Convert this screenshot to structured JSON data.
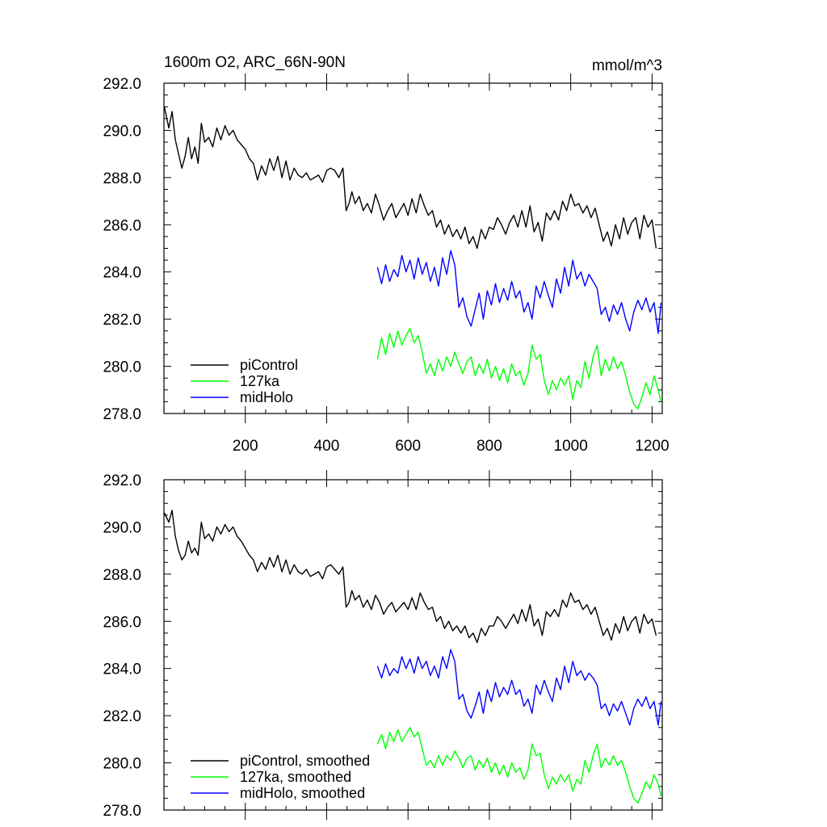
{
  "chart_data": [
    {
      "type": "line",
      "title_left": "1600m O2, ARC_66N-90N",
      "title_right": "mmol/m^3",
      "xlabel": "",
      "ylabel": "",
      "xlim": [
        0,
        1225
      ],
      "ylim": [
        278.0,
        292.0
      ],
      "yticks": [
        "278.0",
        "280.0",
        "282.0",
        "284.0",
        "286.0",
        "288.0",
        "290.0",
        "292.0"
      ],
      "xticks": [
        "200",
        "400",
        "600",
        "800",
        "1000",
        "1200"
      ],
      "legend": "bottom-left",
      "series": [
        {
          "name": "piControl",
          "color": "#000000",
          "x": [
            1,
            12,
            20,
            28,
            36,
            44,
            52,
            60,
            68,
            76,
            84,
            92,
            100,
            110,
            120,
            130,
            140,
            150,
            160,
            170,
            180,
            190,
            200,
            210,
            220,
            230,
            240,
            250,
            260,
            270,
            280,
            290,
            300,
            310,
            320,
            330,
            340,
            350,
            360,
            370,
            380,
            390,
            400,
            410,
            420,
            430,
            440,
            448,
            455,
            462,
            470,
            480,
            490,
            500,
            510,
            520,
            530,
            540,
            550,
            560,
            570,
            580,
            590,
            600,
            610,
            620,
            630,
            640,
            650,
            660,
            670,
            680,
            690,
            700,
            710,
            720,
            730,
            740,
            750,
            760,
            770,
            780,
            790,
            800,
            810,
            820,
            830,
            840,
            850,
            860,
            870,
            880,
            890,
            900,
            910,
            920,
            930,
            940,
            950,
            960,
            970,
            980,
            990,
            1000,
            1010,
            1020,
            1030,
            1040,
            1050,
            1060,
            1070,
            1080,
            1090,
            1100,
            1110,
            1120,
            1130,
            1140,
            1150,
            1160,
            1170,
            1180,
            1190,
            1200,
            1210
          ],
          "y": [
            291.0,
            290.1,
            290.8,
            289.6,
            289.0,
            288.4,
            288.9,
            289.7,
            288.8,
            289.3,
            288.6,
            290.3,
            289.5,
            289.7,
            289.3,
            290.1,
            289.6,
            290.2,
            289.8,
            290.0,
            289.6,
            289.4,
            289.2,
            288.8,
            288.6,
            287.9,
            288.5,
            288.1,
            288.8,
            288.3,
            288.9,
            288.0,
            288.7,
            287.9,
            288.4,
            288.1,
            288.0,
            288.2,
            287.9,
            288.0,
            288.1,
            287.8,
            288.3,
            288.4,
            288.3,
            288.0,
            288.4,
            286.6,
            286.9,
            287.4,
            286.9,
            287.2,
            286.6,
            286.9,
            286.5,
            287.3,
            286.8,
            286.2,
            286.6,
            286.9,
            286.3,
            286.6,
            286.9,
            286.4,
            287.1,
            286.5,
            287.3,
            286.8,
            286.4,
            286.6,
            285.9,
            286.2,
            285.6,
            286.0,
            285.5,
            285.8,
            285.4,
            285.9,
            285.2,
            285.5,
            285.0,
            285.8,
            285.4,
            285.9,
            285.8,
            286.3,
            286.0,
            285.6,
            286.1,
            286.4,
            285.9,
            286.6,
            285.9,
            286.8,
            285.7,
            286.1,
            285.3,
            286.5,
            286.2,
            286.6,
            286.2,
            287.0,
            286.6,
            287.3,
            286.8,
            286.9,
            286.5,
            286.8,
            286.3,
            286.7,
            286.0,
            285.3,
            285.7,
            285.1,
            286.0,
            285.4,
            286.3,
            285.6,
            286.1,
            286.3,
            285.4,
            286.4,
            285.9,
            286.2,
            285.0
          ],
          "smoothed": [
            290.6,
            290.2,
            290.7,
            289.6,
            289.0,
            288.6,
            288.8,
            289.4,
            288.9,
            289.1,
            288.8,
            290.2,
            289.5,
            289.7,
            289.4,
            290.0,
            289.7,
            290.1,
            289.8,
            290.0,
            289.6,
            289.4,
            289.1,
            288.8,
            288.6,
            288.1,
            288.5,
            288.2,
            288.7,
            288.3,
            288.8,
            288.1,
            288.6,
            288.0,
            288.4,
            288.1,
            288.0,
            288.2,
            287.9,
            288.0,
            288.1,
            287.8,
            288.3,
            288.4,
            288.2,
            288.0,
            288.3,
            286.6,
            286.8,
            287.3,
            286.9,
            287.1,
            286.6,
            286.9,
            286.5,
            287.1,
            286.8,
            286.3,
            286.6,
            286.8,
            286.4,
            286.6,
            286.8,
            286.5,
            287.0,
            286.5,
            287.2,
            286.8,
            286.5,
            286.6,
            286.0,
            286.2,
            285.7,
            286.0,
            285.6,
            285.8,
            285.5,
            285.8,
            285.3,
            285.5,
            285.1,
            285.7,
            285.4,
            285.8,
            285.8,
            286.2,
            286.0,
            285.7,
            286.0,
            286.3,
            285.9,
            286.5,
            286.0,
            286.7,
            285.8,
            286.1,
            285.4,
            286.4,
            286.2,
            286.5,
            286.2,
            286.9,
            286.6,
            287.2,
            286.8,
            286.9,
            286.5,
            286.7,
            286.3,
            286.6,
            286.0,
            285.4,
            285.7,
            285.2,
            285.9,
            285.5,
            286.2,
            285.6,
            286.0,
            286.2,
            285.5,
            286.3,
            285.9,
            286.1,
            285.4
          ]
        },
        {
          "name": "127ka",
          "color": "#00ff00",
          "x": [
            525,
            535,
            545,
            555,
            565,
            575,
            585,
            595,
            605,
            615,
            625,
            635,
            645,
            655,
            665,
            675,
            685,
            695,
            705,
            715,
            725,
            735,
            745,
            755,
            765,
            775,
            785,
            795,
            805,
            815,
            825,
            835,
            845,
            855,
            865,
            875,
            885,
            895,
            905,
            915,
            925,
            935,
            945,
            955,
            965,
            975,
            985,
            995,
            1005,
            1015,
            1025,
            1035,
            1045,
            1055,
            1065,
            1075,
            1085,
            1095,
            1105,
            1115,
            1125,
            1135,
            1145,
            1155,
            1165,
            1175,
            1185,
            1195,
            1205,
            1215,
            1222
          ],
          "y": [
            280.3,
            281.2,
            280.5,
            281.4,
            280.8,
            281.5,
            280.9,
            281.3,
            281.6,
            281.0,
            281.3,
            280.6,
            279.7,
            280.1,
            279.6,
            280.3,
            279.8,
            280.4,
            280.0,
            280.6,
            280.1,
            279.7,
            280.2,
            280.4,
            279.6,
            280.1,
            279.7,
            280.3,
            279.5,
            280.0,
            279.4,
            279.9,
            279.3,
            280.1,
            279.6,
            279.8,
            279.2,
            279.7,
            280.9,
            280.3,
            280.5,
            279.4,
            278.8,
            279.4,
            279.0,
            279.5,
            279.2,
            279.6,
            278.6,
            279.4,
            279.1,
            280.2,
            279.5,
            280.4,
            280.9,
            279.6,
            280.3,
            279.8,
            280.4,
            279.9,
            280.2,
            279.6,
            278.9,
            278.4,
            278.2,
            278.7,
            279.3,
            278.8,
            279.6,
            279.0,
            278.5
          ],
          "smoothed": [
            280.8,
            281.2,
            280.6,
            281.3,
            280.9,
            281.4,
            280.9,
            281.2,
            281.5,
            281.1,
            281.3,
            280.6,
            279.9,
            280.1,
            279.8,
            280.3,
            279.9,
            280.3,
            280.1,
            280.5,
            280.2,
            279.8,
            280.2,
            280.3,
            279.7,
            280.1,
            279.8,
            280.2,
            279.6,
            280.0,
            279.5,
            279.9,
            279.4,
            280.0,
            279.6,
            279.8,
            279.3,
            279.7,
            280.8,
            280.3,
            280.4,
            279.5,
            278.9,
            279.4,
            279.1,
            279.5,
            279.2,
            279.5,
            278.8,
            279.3,
            279.1,
            280.1,
            279.6,
            280.3,
            280.8,
            279.8,
            280.2,
            279.9,
            280.3,
            279.9,
            280.1,
            279.6,
            279.0,
            278.5,
            278.3,
            278.7,
            279.2,
            278.9,
            279.5,
            279.1,
            278.6
          ]
        },
        {
          "name": "midHolo",
          "color": "#0000ff",
          "x": [
            525,
            535,
            545,
            555,
            565,
            575,
            585,
            595,
            605,
            615,
            625,
            635,
            645,
            655,
            665,
            675,
            685,
            695,
            705,
            715,
            725,
            735,
            745,
            755,
            765,
            775,
            785,
            795,
            805,
            815,
            825,
            835,
            845,
            855,
            865,
            875,
            885,
            895,
            905,
            915,
            925,
            935,
            945,
            955,
            965,
            975,
            985,
            995,
            1005,
            1015,
            1025,
            1035,
            1045,
            1055,
            1065,
            1075,
            1085,
            1095,
            1105,
            1115,
            1125,
            1135,
            1145,
            1155,
            1165,
            1175,
            1185,
            1195,
            1205,
            1215,
            1222
          ],
          "y": [
            284.2,
            283.5,
            284.3,
            283.6,
            284.1,
            283.8,
            284.7,
            284.0,
            284.5,
            283.7,
            284.6,
            283.9,
            284.4,
            283.6,
            284.2,
            283.4,
            284.6,
            283.9,
            284.9,
            284.3,
            282.5,
            282.9,
            282.1,
            281.7,
            282.4,
            283.1,
            282.0,
            283.2,
            282.6,
            283.5,
            282.7,
            283.3,
            282.8,
            283.6,
            282.9,
            283.2,
            282.3,
            282.7,
            282.0,
            283.4,
            282.9,
            283.6,
            283.0,
            282.5,
            283.7,
            283.1,
            284.2,
            283.4,
            284.5,
            283.7,
            284.0,
            283.4,
            283.9,
            283.6,
            283.3,
            282.2,
            282.5,
            281.9,
            282.6,
            282.2,
            282.7,
            282.0,
            281.5,
            282.3,
            282.8,
            282.4,
            282.9,
            282.3,
            282.7,
            281.4,
            282.7
          ],
          "smoothed": [
            284.1,
            283.6,
            284.2,
            283.7,
            284.0,
            283.8,
            284.5,
            284.0,
            284.4,
            283.8,
            284.5,
            284.0,
            284.3,
            283.7,
            284.1,
            283.6,
            284.5,
            284.0,
            284.8,
            284.3,
            282.7,
            282.9,
            282.2,
            281.9,
            282.4,
            283.0,
            282.1,
            283.1,
            282.6,
            283.4,
            282.8,
            283.2,
            282.9,
            283.5,
            282.9,
            283.1,
            282.4,
            282.7,
            282.1,
            283.3,
            282.9,
            283.5,
            283.0,
            282.6,
            283.6,
            283.1,
            284.1,
            283.4,
            284.3,
            283.7,
            283.9,
            283.5,
            283.8,
            283.6,
            283.3,
            282.3,
            282.5,
            282.0,
            282.5,
            282.2,
            282.6,
            282.1,
            281.6,
            282.3,
            282.7,
            282.4,
            282.8,
            282.3,
            282.6,
            281.6,
            282.6
          ]
        }
      ]
    },
    {
      "type": "line",
      "title_left": "",
      "title_right": "",
      "xlabel": "",
      "ylabel": "",
      "xlim": [
        0,
        1225
      ],
      "ylim": [
        278.0,
        292.0
      ],
      "yticks": [
        "278.0",
        "280.0",
        "282.0",
        "284.0",
        "286.0",
        "288.0",
        "290.0",
        "292.0"
      ],
      "xticks": [],
      "legend": "bottom-left",
      "series": [
        {
          "name": "piControl, smoothed",
          "color": "#000000",
          "source": 0
        },
        {
          "name": "127ka, smoothed",
          "color": "#00ff00",
          "source": 1
        },
        {
          "name": "midHolo, smoothed",
          "color": "#0000ff",
          "source": 2
        }
      ]
    }
  ]
}
